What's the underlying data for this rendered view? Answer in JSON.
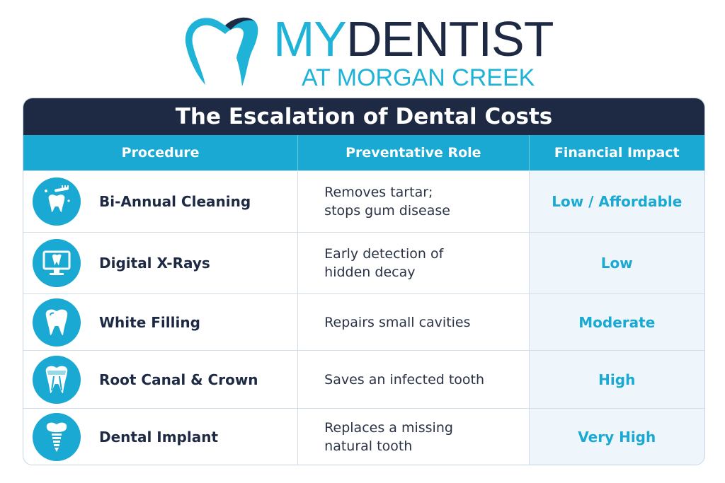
{
  "brand": {
    "name_part1": "MY",
    "name_part2": "DENTIST",
    "location": "AT MORGAN CREEK",
    "colors": {
      "accent": "#1fb3d8",
      "navy": "#1e2a44"
    }
  },
  "table": {
    "title": "The Escalation of Dental Costs",
    "columns": [
      "Procedure",
      "Preventative Role",
      "Financial Impact"
    ],
    "rows": [
      {
        "procedure": "Bi-Annual Cleaning",
        "role": "Removes tartar;\nstops gum disease",
        "impact": "Low / Affordable",
        "icon": "toothbrush-tooth-icon"
      },
      {
        "procedure": "Digital X-Rays",
        "role": "Early detection of\nhidden decay",
        "impact": "Low",
        "icon": "monitor-xray-icon"
      },
      {
        "procedure": "White Filling",
        "role": "Repairs small cavities",
        "impact": "Moderate",
        "icon": "tooth-icon"
      },
      {
        "procedure": "Root Canal & Crown",
        "role": "Saves an infected tooth",
        "impact": "High",
        "icon": "root-canal-tooth-icon"
      },
      {
        "procedure": "Dental Implant",
        "role": "Replaces a missing\nnatural tooth",
        "impact": "Very High",
        "icon": "implant-icon"
      }
    ]
  }
}
